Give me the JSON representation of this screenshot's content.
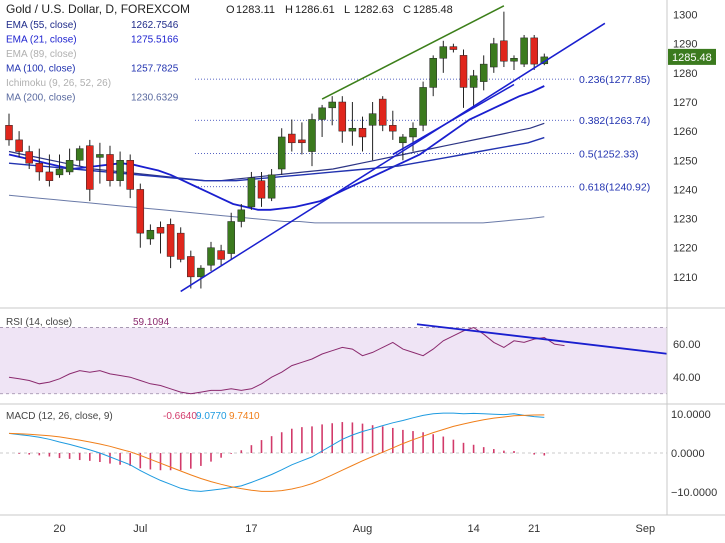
{
  "header": {
    "symbol": "Gold / U.S. Dollar, D, FOREXCOM",
    "ohlc": [
      {
        "key": "O",
        "value": "1283.11"
      },
      {
        "key": "H",
        "value": "1286.61"
      },
      {
        "key": "L",
        "value": "1282.63"
      },
      {
        "key": "C",
        "value": "1285.48"
      }
    ]
  },
  "indicators": [
    {
      "label": "EMA (55, close)",
      "value": "1262.7546",
      "color": "#1f2b8a"
    },
    {
      "label": "EMA (21, close)",
      "value": "1275.5166",
      "color": "#1a1fcf"
    },
    {
      "label": "EMA (89, close)",
      "value": "",
      "color": "#b0b0b0"
    },
    {
      "label": "MA (100, close)",
      "value": "1257.7825",
      "color": "#2233b0"
    },
    {
      "label": "Ichimoku (9, 26, 52, 26)",
      "value": "",
      "color": "#b0b0b0"
    },
    {
      "label": "MA (200, close)",
      "value": "1230.6329",
      "color": "#5a6aa0"
    }
  ],
  "colors": {
    "up": "#3b7a1e",
    "down": "#e0261c",
    "trend": "#1a1fcf",
    "channel": "#3c7f1a",
    "rsi": "#8b2a6e",
    "rsi_bg": "#efe4f5",
    "macd": "#1e9be0",
    "signal": "#f07f1a",
    "hist": "#d23a6a"
  },
  "chart_data": [
    {
      "type": "candlestick",
      "title": "Gold / U.S. Dollar, D, FOREXCOM",
      "ylim": [
        1200,
        1305
      ],
      "yticks": [
        1210,
        1220,
        1230,
        1240,
        1250,
        1260,
        1270,
        1280,
        1290,
        1300
      ],
      "x_tick_labels": [
        {
          "label": "20",
          "bar": 5
        },
        {
          "label": "Jul",
          "bar": 13
        },
        {
          "label": "17",
          "bar": 24
        },
        {
          "label": "Aug",
          "bar": 35
        },
        {
          "label": "14",
          "bar": 46
        },
        {
          "label": "21",
          "bar": 52
        },
        {
          "label": "Sep",
          "bar": 63
        }
      ],
      "last_price": 1285.48,
      "candles": [
        {
          "o": 1262,
          "h": 1266,
          "l": 1255,
          "c": 1257
        },
        {
          "o": 1257,
          "h": 1260,
          "l": 1251,
          "c": 1253
        },
        {
          "o": 1253,
          "h": 1255,
          "l": 1247,
          "c": 1249
        },
        {
          "o": 1249,
          "h": 1254,
          "l": 1243,
          "c": 1246
        },
        {
          "o": 1246,
          "h": 1252,
          "l": 1241,
          "c": 1243
        },
        {
          "o": 1245,
          "h": 1252,
          "l": 1244,
          "c": 1247
        },
        {
          "o": 1246,
          "h": 1254,
          "l": 1245,
          "c": 1250
        },
        {
          "o": 1250,
          "h": 1255,
          "l": 1248,
          "c": 1254
        },
        {
          "o": 1255,
          "h": 1257,
          "l": 1236,
          "c": 1240
        },
        {
          "o": 1251,
          "h": 1256,
          "l": 1242,
          "c": 1252
        },
        {
          "o": 1252,
          "h": 1255,
          "l": 1241,
          "c": 1243
        },
        {
          "o": 1243,
          "h": 1253,
          "l": 1241,
          "c": 1250
        },
        {
          "o": 1250,
          "h": 1252,
          "l": 1237,
          "c": 1240
        },
        {
          "o": 1240,
          "h": 1242,
          "l": 1220,
          "c": 1225
        },
        {
          "o": 1223,
          "h": 1228,
          "l": 1221,
          "c": 1226
        },
        {
          "o": 1227,
          "h": 1229,
          "l": 1218,
          "c": 1225
        },
        {
          "o": 1228,
          "h": 1230,
          "l": 1213,
          "c": 1217
        },
        {
          "o": 1225,
          "h": 1227,
          "l": 1215,
          "c": 1216
        },
        {
          "o": 1217,
          "h": 1219,
          "l": 1206,
          "c": 1210
        },
        {
          "o": 1210,
          "h": 1214,
          "l": 1206,
          "c": 1213
        },
        {
          "o": 1214,
          "h": 1222,
          "l": 1212,
          "c": 1220
        },
        {
          "o": 1219,
          "h": 1221,
          "l": 1214,
          "c": 1216
        },
        {
          "o": 1218,
          "h": 1232,
          "l": 1216,
          "c": 1229
        },
        {
          "o": 1229,
          "h": 1235,
          "l": 1227,
          "c": 1233
        },
        {
          "o": 1234,
          "h": 1246,
          "l": 1233,
          "c": 1244
        },
        {
          "o": 1243,
          "h": 1246,
          "l": 1234,
          "c": 1237
        },
        {
          "o": 1237,
          "h": 1247,
          "l": 1236,
          "c": 1245
        },
        {
          "o": 1247,
          "h": 1261,
          "l": 1245,
          "c": 1258
        },
        {
          "o": 1259,
          "h": 1264,
          "l": 1253,
          "c": 1256
        },
        {
          "o": 1257,
          "h": 1263,
          "l": 1252,
          "c": 1256
        },
        {
          "o": 1253,
          "h": 1266,
          "l": 1248,
          "c": 1264
        },
        {
          "o": 1264,
          "h": 1269,
          "l": 1258,
          "c": 1268
        },
        {
          "o": 1268,
          "h": 1272,
          "l": 1262,
          "c": 1270
        },
        {
          "o": 1270,
          "h": 1272,
          "l": 1256,
          "c": 1260
        },
        {
          "o": 1260,
          "h": 1270,
          "l": 1255,
          "c": 1261
        },
        {
          "o": 1261,
          "h": 1265,
          "l": 1253,
          "c": 1258
        },
        {
          "o": 1262,
          "h": 1270,
          "l": 1250,
          "c": 1266
        },
        {
          "o": 1271,
          "h": 1272,
          "l": 1260,
          "c": 1262
        },
        {
          "o": 1262,
          "h": 1267,
          "l": 1257,
          "c": 1260
        },
        {
          "o": 1256,
          "h": 1259,
          "l": 1250,
          "c": 1258
        },
        {
          "o": 1258,
          "h": 1263,
          "l": 1253,
          "c": 1261
        },
        {
          "o": 1262,
          "h": 1277,
          "l": 1260,
          "c": 1275
        },
        {
          "o": 1275,
          "h": 1286,
          "l": 1272,
          "c": 1285
        },
        {
          "o": 1285,
          "h": 1291,
          "l": 1280,
          "c": 1289
        },
        {
          "o": 1289,
          "h": 1290,
          "l": 1287,
          "c": 1288
        },
        {
          "o": 1286,
          "h": 1288,
          "l": 1268,
          "c": 1275
        },
        {
          "o": 1275,
          "h": 1281,
          "l": 1268,
          "c": 1279
        },
        {
          "o": 1277,
          "h": 1286,
          "l": 1274,
          "c": 1283
        },
        {
          "o": 1282,
          "h": 1292,
          "l": 1280,
          "c": 1290
        },
        {
          "o": 1291,
          "h": 1301,
          "l": 1282,
          "c": 1284
        },
        {
          "o": 1284,
          "h": 1286,
          "l": 1281,
          "c": 1285
        },
        {
          "o": 1283,
          "h": 1293,
          "l": 1282,
          "c": 1292
        },
        {
          "o": 1292,
          "h": 1293,
          "l": 1281,
          "c": 1283
        },
        {
          "o": 1283.11,
          "h": 1286.61,
          "l": 1282.63,
          "c": 1285.48
        }
      ],
      "moving_averages": [
        {
          "label": "EMA (55, close)",
          "from_bar": 0,
          "values": [
            1253,
            1252,
            1251,
            1250,
            1249,
            1248,
            1247,
            1246.5,
            1246,
            1245.5,
            1245,
            1244.5,
            1244,
            1243.5,
            1243,
            1243,
            1243.5,
            1244,
            1244.5,
            1245,
            1245.5,
            1246,
            1246.5,
            1247,
            1248,
            1249,
            1250,
            1251,
            1252,
            1253,
            1254,
            1255,
            1256,
            1257,
            1258,
            1259,
            1260,
            1261,
            1262.7
          ]
        },
        {
          "label": "EMA (21, close)",
          "from_bar": 0,
          "values": [
            1252,
            1251,
            1250,
            1249,
            1248,
            1247,
            1247.5,
            1248,
            1248.5,
            1249,
            1248.5,
            1247.5,
            1246.5,
            1245,
            1243,
            1241,
            1239,
            1237,
            1235,
            1234,
            1233,
            1233,
            1233.5,
            1234,
            1235,
            1236,
            1238,
            1240,
            1242,
            1244,
            1246,
            1248,
            1250,
            1252,
            1255,
            1258,
            1261,
            1264,
            1266,
            1268,
            1270,
            1272,
            1273.5,
            1275.5
          ]
        },
        {
          "label": "MA (100, close)",
          "from_bar": 0,
          "values": [
            1249,
            1248.5,
            1248,
            1247.5,
            1247,
            1246.5,
            1246,
            1245.5,
            1245,
            1244.5,
            1244,
            1243.5,
            1243,
            1243,
            1243,
            1243.5,
            1244,
            1244.5,
            1245,
            1245.5,
            1246,
            1246.5,
            1247,
            1247.5,
            1248,
            1249,
            1250,
            1251,
            1252,
            1253,
            1254,
            1255,
            1256,
            1257.8
          ]
        },
        {
          "label": "MA (200, close)",
          "from_bar": 0,
          "values": [
            1238,
            1237.5,
            1237,
            1236.5,
            1236,
            1235.5,
            1235,
            1234.5,
            1234,
            1233.5,
            1233,
            1232.5,
            1232,
            1231.5,
            1231,
            1230.5,
            1230,
            1229.5,
            1229,
            1229,
            1228.5,
            1228.5,
            1228.5,
            1228.5,
            1228.5,
            1228.5,
            1228.5,
            1228.5,
            1228.5,
            1228.5,
            1228.5,
            1228.5,
            1229,
            1229.5,
            1230,
            1230.6
          ]
        }
      ],
      "fibonacci": [
        {
          "label": "0.236(1277.85)",
          "level": 1277.85
        },
        {
          "label": "0.382(1263.74)",
          "level": 1263.74
        },
        {
          "label": "0.5(1252.33)",
          "level": 1252.33
        },
        {
          "label": "0.618(1240.92)",
          "level": 1240.92
        }
      ],
      "trendlines": [
        {
          "role": "support",
          "from": {
            "bar": 17,
            "price": 1205
          },
          "to": {
            "bar": 59,
            "price": 1297
          }
        },
        {
          "role": "channel-top",
          "from": {
            "bar": 31,
            "price": 1271
          },
          "to": {
            "bar": 49,
            "price": 1303
          }
        },
        {
          "role": "channel-low",
          "from": {
            "bar": 38,
            "price": 1252
          },
          "to": {
            "bar": 50,
            "price": 1276
          }
        }
      ]
    },
    {
      "type": "line",
      "title": "RSI (14, close)",
      "last_value": "59.1094",
      "ylim": [
        25,
        80
      ],
      "yticks": [
        40,
        60
      ],
      "band": [
        30,
        70
      ],
      "values": [
        40,
        39,
        38,
        36,
        37,
        39,
        42,
        44,
        43,
        44,
        42,
        41,
        40,
        38,
        36,
        35,
        33,
        31,
        30,
        31,
        32,
        32,
        33,
        32,
        33,
        36,
        40,
        43,
        47,
        49,
        51,
        54,
        56,
        58,
        57,
        53,
        55,
        58,
        61,
        57,
        55,
        53,
        57,
        62,
        65,
        68,
        70,
        66,
        61,
        58,
        62,
        61,
        63,
        64,
        60,
        59.1
      ],
      "trendline": {
        "from": {
          "bar": 40,
          "value": 72
        },
        "to": {
          "bar": 62,
          "value": 56
        }
      }
    },
    {
      "type": "line",
      "title": "MACD (12, 26, close, 9)",
      "values_printed": [
        "-0.6640",
        "9.0770",
        "9.7410"
      ],
      "ylim": [
        -12,
        12
      ],
      "yticks": [
        10,
        0,
        -10
      ],
      "macd": [
        5,
        4.7,
        4.4,
        4,
        3.5,
        2.8,
        2.2,
        1.5,
        0.8,
        0,
        -1,
        -2,
        -3,
        -4.5,
        -5.8,
        -7,
        -8,
        -9,
        -9.6,
        -9.8,
        -9.5,
        -9.2,
        -8.8,
        -8.4,
        -7.5,
        -6.5,
        -5.5,
        -4.3,
        -3,
        -2,
        -1,
        0.5,
        2,
        3.5,
        4.6,
        5.5,
        6.2,
        7,
        7.7,
        8.3,
        9,
        9.6,
        10,
        10.2,
        10.2,
        10,
        10.1,
        10,
        9.9,
        9.8,
        10,
        9.6,
        9.3,
        9.1
      ],
      "signal": [
        5,
        4.9,
        4.8,
        4.6,
        4.4,
        4.1,
        3.7,
        3.3,
        2.8,
        2.3,
        1.7,
        1,
        0.3,
        -0.6,
        -1.6,
        -2.6,
        -3.6,
        -4.6,
        -5.6,
        -6.5,
        -7.3,
        -8,
        -8.6,
        -9.1,
        -9.5,
        -9.8,
        -9.8,
        -9.6,
        -9.2,
        -8.6,
        -7.8,
        -6.8,
        -5.6,
        -4.4,
        -3.2,
        -2,
        -0.9,
        0.2,
        1.3,
        2.4,
        3.4,
        4.3,
        5.2,
        6,
        6.8,
        7.4,
        8,
        8.5,
        8.9,
        9.2,
        9.5,
        9.6,
        9.7,
        9.74
      ]
    }
  ]
}
